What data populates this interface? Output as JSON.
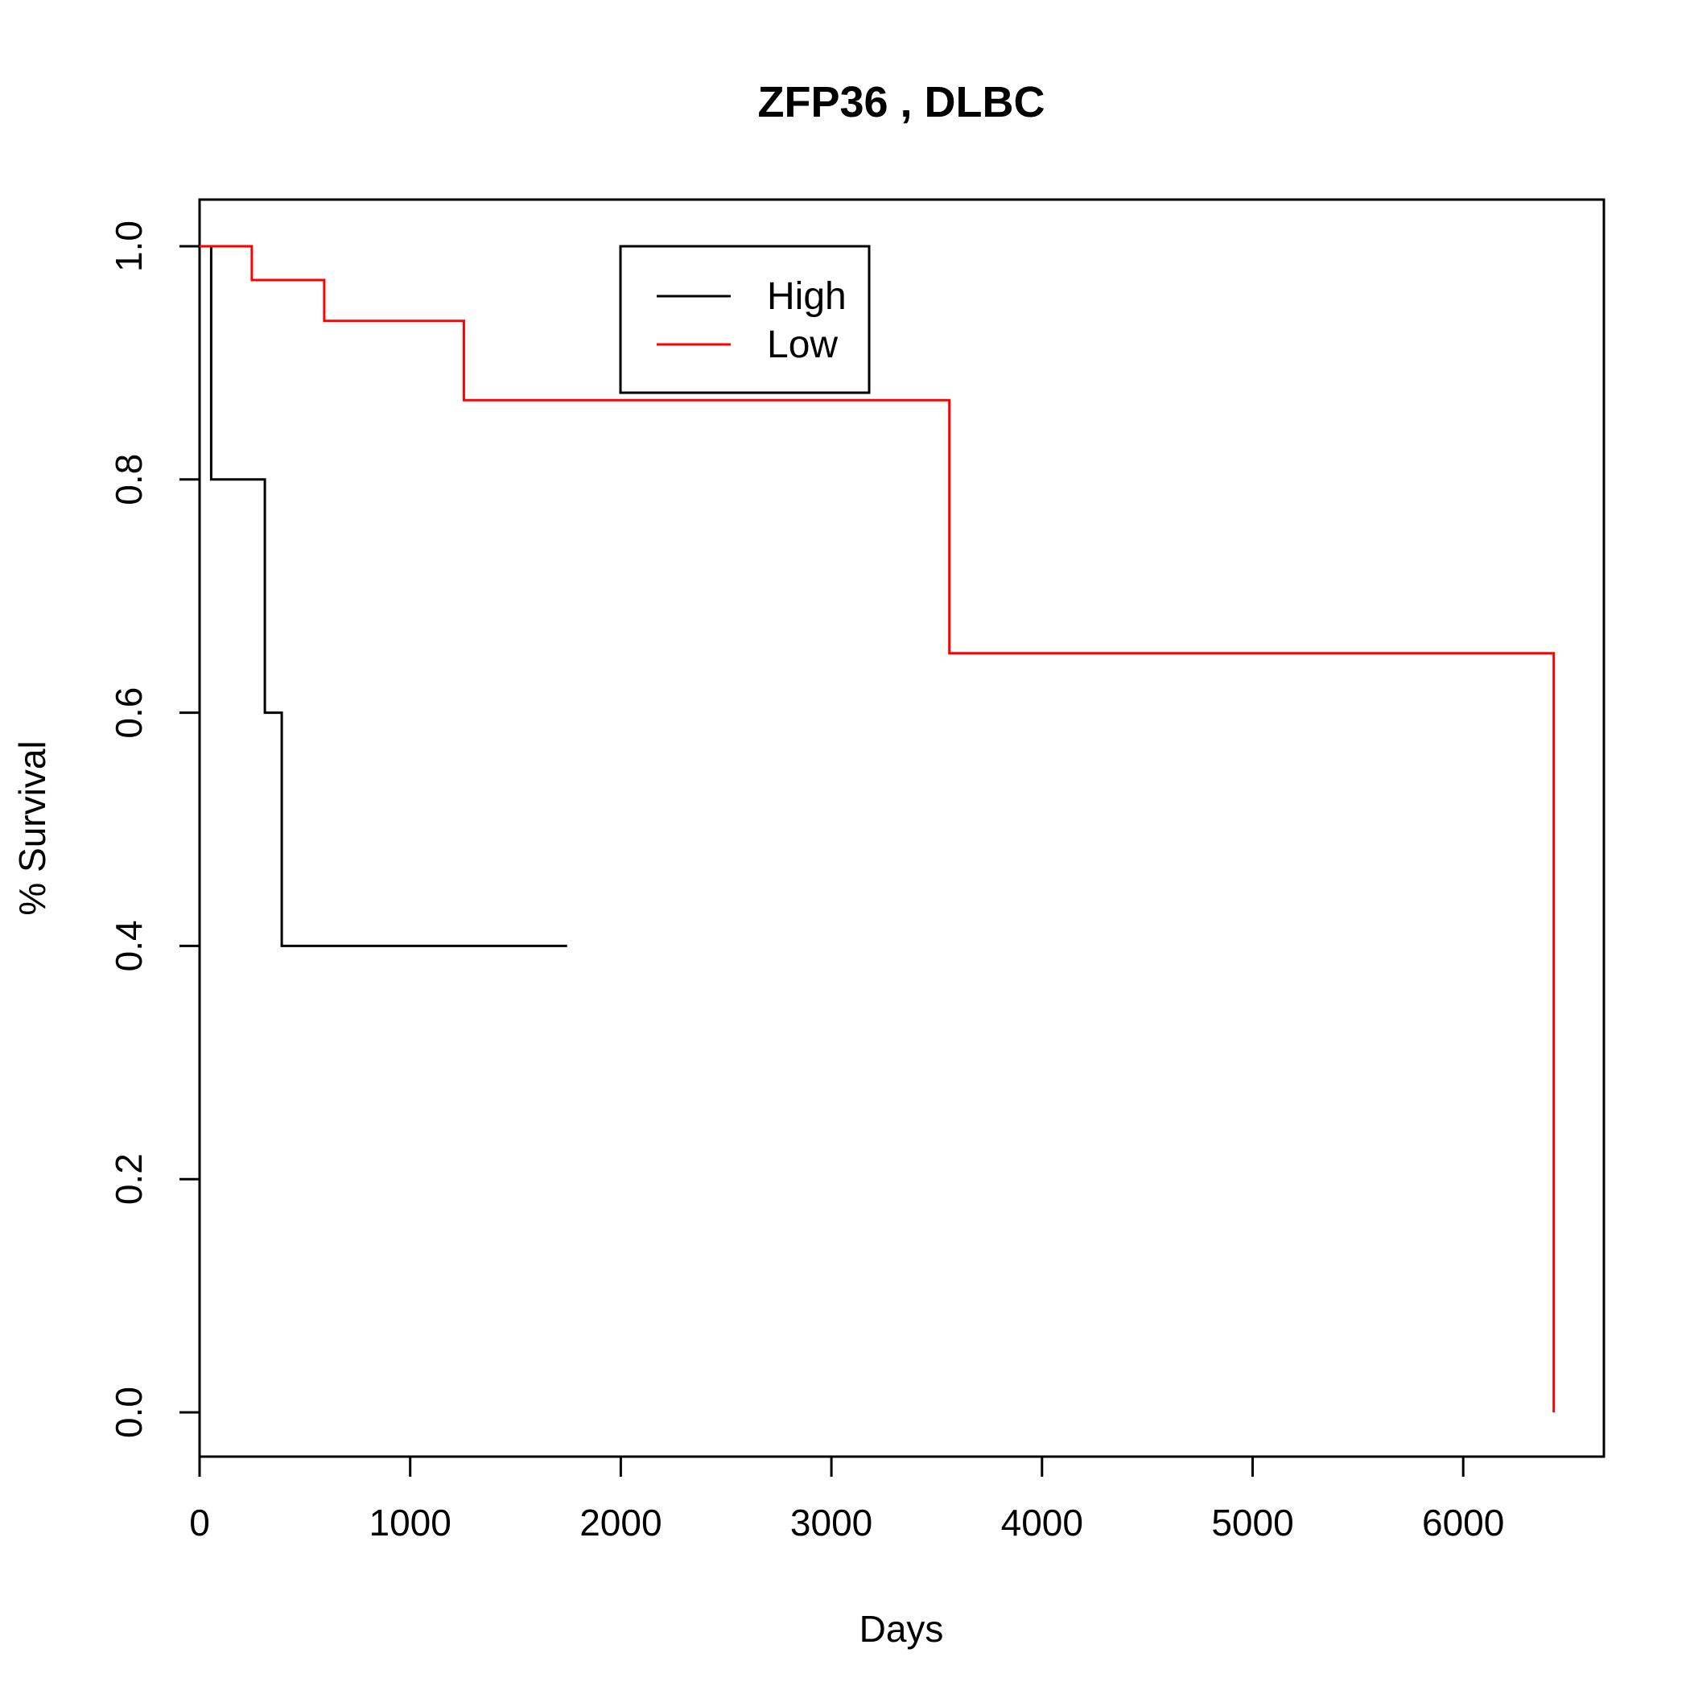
{
  "chart_data": {
    "type": "line",
    "title": "ZFP36 ,  DLBC",
    "xlabel": "Days",
    "ylabel": "% Survival",
    "xlim": [
      0,
      6700
    ],
    "ylim": [
      0,
      1
    ],
    "x_ticks": [
      "0",
      "1000",
      "2000",
      "3000",
      "4000",
      "5000",
      "6000"
    ],
    "y_ticks": [
      "0.0",
      "0.2",
      "0.4",
      "0.6",
      "0.8",
      "1.0"
    ],
    "grid": false,
    "legend": {
      "position": "top-center"
    },
    "series": [
      {
        "name": "High",
        "color": "#000000",
        "step": true,
        "points": [
          [
            0,
            1.0
          ],
          [
            55,
            1.0
          ],
          [
            55,
            0.8
          ],
          [
            310,
            0.8
          ],
          [
            310,
            0.6
          ],
          [
            390,
            0.6
          ],
          [
            390,
            0.4
          ],
          [
            1745,
            0.4
          ]
        ]
      },
      {
        "name": "Low",
        "color": "#ff0000",
        "step": true,
        "points": [
          [
            0,
            1.0
          ],
          [
            248,
            1.0
          ],
          [
            248,
            0.971
          ],
          [
            592,
            0.971
          ],
          [
            592,
            0.936
          ],
          [
            1255,
            0.936
          ],
          [
            1255,
            0.868
          ],
          [
            3560,
            0.868
          ],
          [
            3560,
            0.651
          ],
          [
            6430,
            0.651
          ],
          [
            6430,
            0.0
          ]
        ]
      }
    ]
  }
}
